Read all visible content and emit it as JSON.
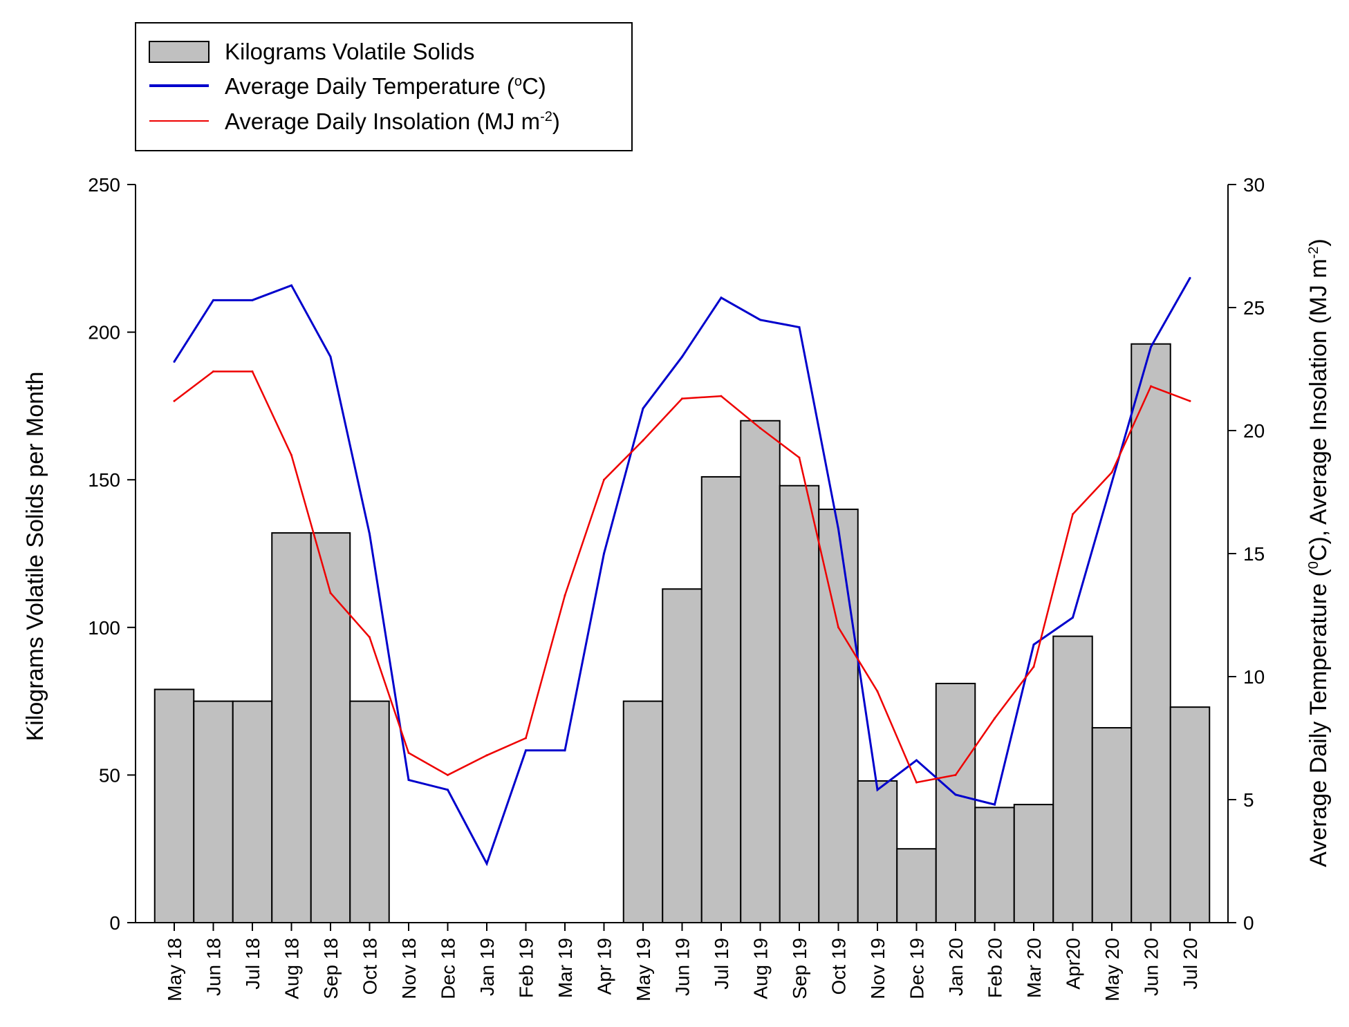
{
  "chart_data": {
    "type": "bar",
    "categories": [
      "May 18",
      "Jun 18",
      "Jul 18",
      "Aug 18",
      "Sep 18",
      "Oct 18",
      "Nov 18",
      "Dec 18",
      "Jan 19",
      "Feb 19",
      "Mar 19",
      "Apr 19",
      "May 19",
      "Jun 19",
      "Jul 19",
      "Aug 19",
      "Sep 19",
      "Oct 19",
      "Nov 19",
      "Dec 19",
      "Jan 20",
      "Feb 20",
      "Mar 20",
      "Apr20",
      "May 20",
      "Jun 20",
      "Jul 20"
    ],
    "series": [
      {
        "name": "Kilograms Volatile Solids",
        "kind": "bar",
        "axis": "left",
        "color": "#c0c0c0",
        "values": [
          79,
          75,
          75,
          132,
          132,
          75,
          null,
          null,
          null,
          null,
          null,
          null,
          75,
          113,
          151,
          170,
          148,
          140,
          48,
          25,
          81,
          39,
          40,
          97,
          66,
          196,
          73
        ]
      },
      {
        "name": "Average Daily Temperature",
        "kind": "line",
        "axis": "right",
        "color": "#0000cc",
        "values": [
          22.8,
          25.3,
          25.3,
          25.9,
          23.0,
          15.8,
          5.8,
          5.4,
          2.4,
          7.0,
          7.0,
          15.0,
          20.9,
          23.0,
          25.4,
          24.5,
          24.2,
          16.0,
          5.4,
          6.6,
          5.2,
          4.8,
          11.3,
          12.4,
          17.9,
          23.4,
          26.2
        ]
      },
      {
        "name": "Average Daily Insolation",
        "kind": "line",
        "axis": "right",
        "color": "#ee0000",
        "values": [
          21.2,
          22.4,
          22.4,
          19.0,
          13.4,
          11.6,
          6.9,
          6.0,
          6.8,
          7.5,
          13.3,
          18.0,
          19.6,
          21.3,
          21.4,
          20.1,
          18.9,
          12.0,
          9.4,
          5.7,
          6.0,
          8.3,
          10.4,
          16.6,
          18.3,
          21.8,
          21.2
        ]
      }
    ],
    "ylim": [
      0,
      250
    ],
    "yticks": [
      0,
      50,
      100,
      150,
      200,
      250
    ],
    "ylim_right": [
      0,
      30
    ],
    "yticks_right": [
      0,
      5,
      10,
      15,
      20,
      25,
      30
    ],
    "ylabel": "Kilograms Volatile Solids per Month",
    "ylabel_right_parts": {
      "a": "Average Daily Temperature (",
      "a_sup": "0",
      "b": "C), Average Insolation (MJ m",
      "b_sup": "-2",
      "c": ")"
    },
    "legend_position": "top-left",
    "legend": {
      "bar": "Kilograms Volatile Solids",
      "temp_text": "Average Daily Temperature (",
      "temp_sup": "o",
      "temp_end": "C)",
      "insol_text": "Average Daily Insolation (MJ m",
      "insol_sup": "-2",
      "insol_end": ")"
    },
    "grid": false
  }
}
